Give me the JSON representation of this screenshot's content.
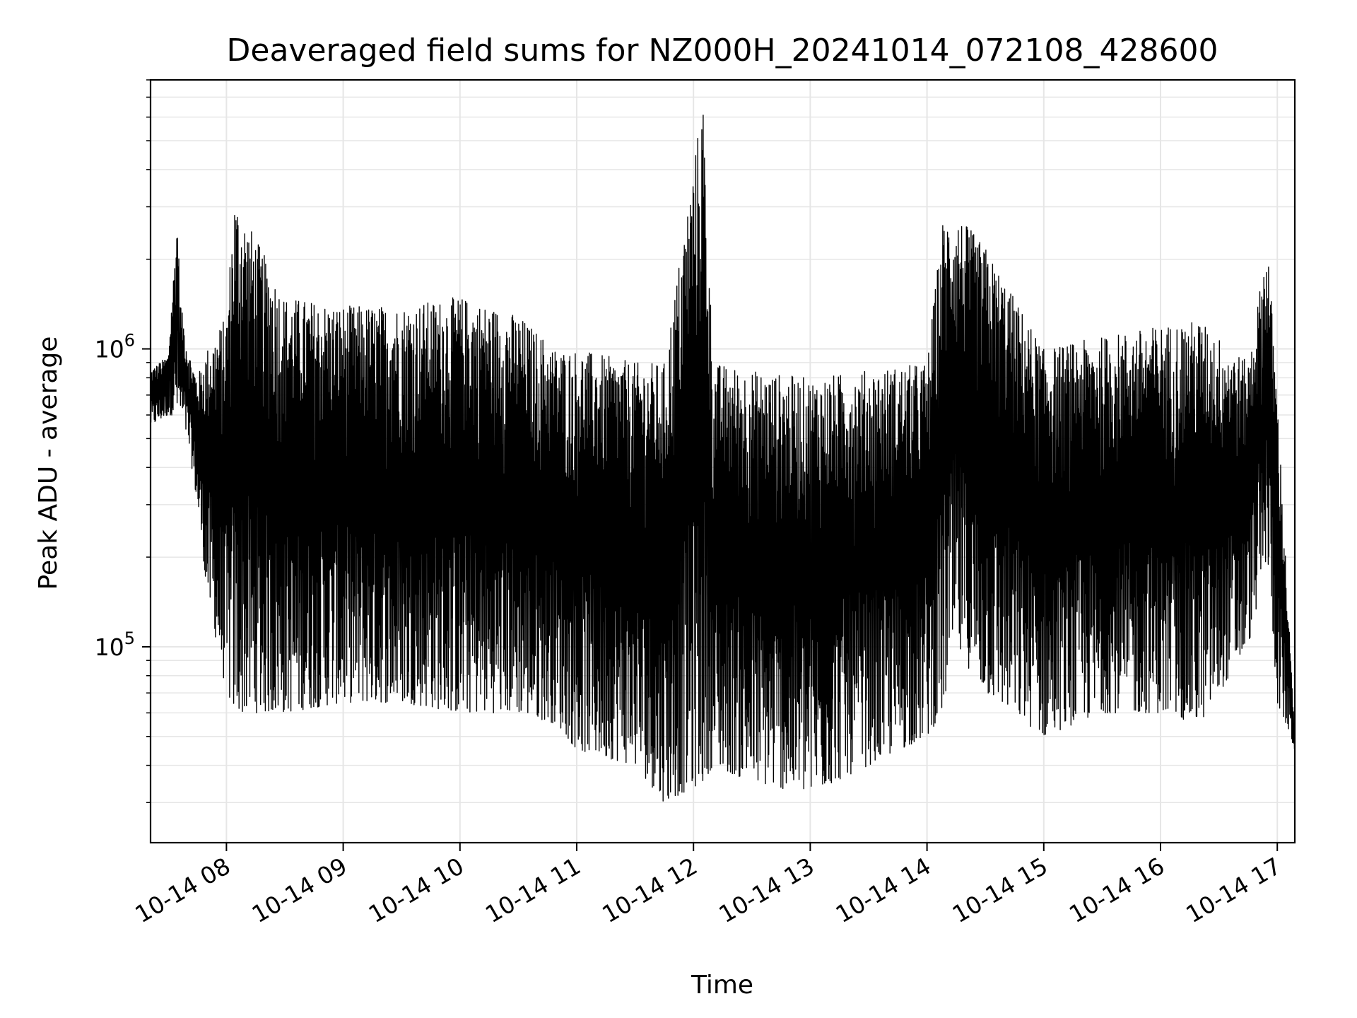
{
  "chart_data": {
    "type": "line",
    "title": "Deaveraged field sums for NZ000H_20241014_072108_428600",
    "xlabel": "Time",
    "ylabel": "Peak ADU - average",
    "yscale": "log",
    "grid": true,
    "line_color": "#000000",
    "grid_color": "#e6e6e6",
    "xlim": [
      "2024-10-14 07:21",
      "2024-10-14 17:09"
    ],
    "ylim": [
      22000,
      8000000
    ],
    "x_ticks": [
      "10-14 08",
      "10-14 09",
      "10-14 10",
      "10-14 11",
      "10-14 12",
      "10-14 13",
      "10-14 14",
      "10-14 15",
      "10-14 16",
      "10-14 17"
    ],
    "y_ticks": [
      {
        "base": "10",
        "exp": "5",
        "value": 100000
      },
      {
        "base": "10",
        "exp": "6",
        "value": 1000000
      }
    ],
    "series": [
      {
        "x": [
          "2024-10-14 07:21",
          "2024-10-14 07:30",
          "2024-10-14 07:35",
          "2024-10-14 07:36",
          "2024-10-14 07:40",
          "2024-10-14 07:45",
          "2024-10-14 07:50",
          "2024-10-14 08:00",
          "2024-10-14 08:04",
          "2024-10-14 08:30",
          "2024-10-14 09:00",
          "2024-10-14 09:30",
          "2024-10-14 10:00",
          "2024-10-14 10:30",
          "2024-10-14 10:50",
          "2024-10-14 11:00",
          "2024-10-14 11:30",
          "2024-10-14 11:45",
          "2024-10-14 12:05",
          "2024-10-14 12:10",
          "2024-10-14 12:30",
          "2024-10-14 13:00",
          "2024-10-14 13:30",
          "2024-10-14 14:00",
          "2024-10-14 14:08",
          "2024-10-14 14:14",
          "2024-10-14 14:30",
          "2024-10-14 15:00",
          "2024-10-14 15:30",
          "2024-10-14 16:00",
          "2024-10-14 16:20",
          "2024-10-14 16:45",
          "2024-10-14 16:55",
          "2024-10-14 17:00",
          "2024-10-14 17:09"
        ],
        "min": [
          550000,
          600000,
          600000,
          600000,
          500000,
          300000,
          150000,
          70000,
          60000,
          60000,
          65000,
          65000,
          60000,
          60000,
          55000,
          45000,
          40000,
          30000,
          35000,
          40000,
          35000,
          32000,
          40000,
          50000,
          60000,
          100000,
          70000,
          50000,
          60000,
          60000,
          55000,
          100000,
          200000,
          65000,
          45000
        ],
        "max": [
          850000,
          950000,
          2900000,
          1500000,
          1000000,
          800000,
          1000000,
          1300000,
          3300000,
          1500000,
          1400000,
          1400000,
          1500000,
          1300000,
          1000000,
          1000000,
          900000,
          900000,
          7000000,
          900000,
          850000,
          800000,
          850000,
          900000,
          2700000,
          2900000,
          2200000,
          1000000,
          1100000,
          1200000,
          1250000,
          900000,
          2300000,
          700000,
          50000
        ]
      }
    ]
  }
}
